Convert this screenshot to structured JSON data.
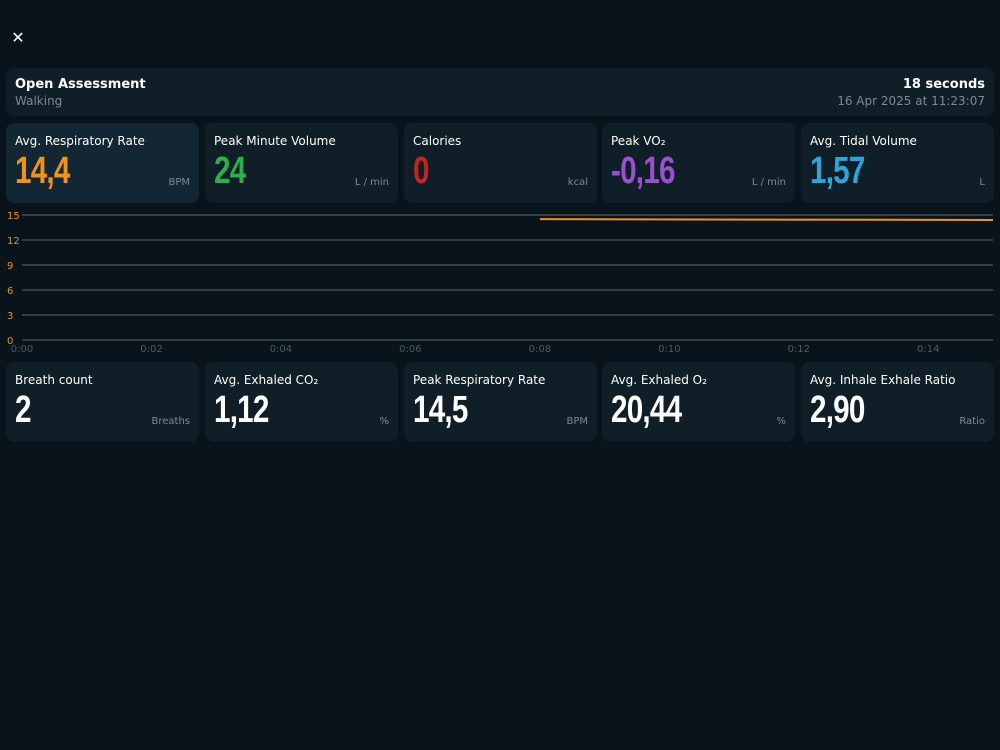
{
  "window": {
    "close_icon": "close-icon"
  },
  "header": {
    "title": "Open Assessment",
    "activity": "Walking",
    "duration": "18 seconds",
    "date": "16 Apr 2025 at 11:23:07"
  },
  "top_metrics": [
    {
      "label": "Avg. Respiratory Rate",
      "value": "14,4",
      "unit": "BPM",
      "color": "#f0931c"
    },
    {
      "label": "Peak Minute Volume",
      "value": "24",
      "unit": "L / min",
      "color": "#2db04a"
    },
    {
      "label": "Calories",
      "value": "0",
      "unit": "kcal",
      "color": "#c82323"
    },
    {
      "label": "Peak VO₂",
      "value": "-0,16",
      "unit": "L / min",
      "color": "#9b4fd1"
    },
    {
      "label": "Avg. Tidal Volume",
      "value": "1,57",
      "unit": "L",
      "color": "#2fa4dc"
    }
  ],
  "bottom_metrics": [
    {
      "label": "Breath count",
      "value": "2",
      "unit": "Breaths",
      "color": "#ffffff"
    },
    {
      "label": "Avg. Exhaled CO₂",
      "value": "1,12",
      "unit": "%",
      "color": "#ffffff"
    },
    {
      "label": "Peak Respiratory Rate",
      "value": "14,5",
      "unit": "BPM",
      "color": "#ffffff"
    },
    {
      "label": "Avg. Exhaled O₂",
      "value": "20,44",
      "unit": "%",
      "color": "#ffffff"
    },
    {
      "label": "Avg. Inhale Exhale Ratio",
      "value": "2,90",
      "unit": "Ratio",
      "color": "#ffffff"
    }
  ],
  "chart_data": {
    "type": "line",
    "title": "",
    "xlabel": "",
    "ylabel": "",
    "x_ticks": [
      "0:00",
      "0:02",
      "0:04",
      "0:06",
      "0:08",
      "0:10",
      "0:12",
      "0:14"
    ],
    "y_ticks": [
      0,
      3,
      6,
      9,
      12,
      15
    ],
    "ylim": [
      0,
      15
    ],
    "xlim_seconds": [
      0,
      15
    ],
    "grid": true,
    "series": [
      {
        "color": "#f0931c",
        "x_seconds": [
          8,
          15
        ],
        "values": [
          14.5,
          14.4
        ]
      }
    ],
    "tick_color_y": "#f0931c",
    "tick_color_x": "#4b5a64"
  }
}
